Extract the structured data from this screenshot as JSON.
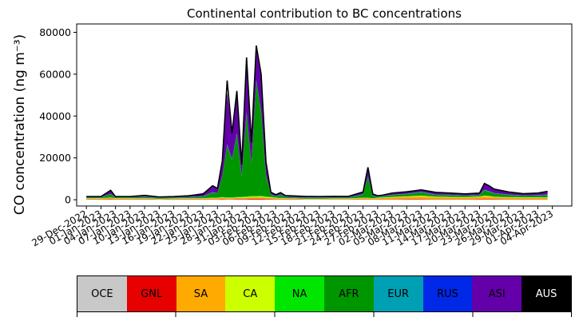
{
  "chart_data": {
    "type": "area",
    "title": "Continental contribution to BC concentrations",
    "ylabel": "CO concentration (ng m⁻³)",
    "xlabel": "",
    "ylim": [
      -3000,
      84000
    ],
    "yticks": [
      0,
      20000,
      40000,
      60000,
      80000
    ],
    "yticklabels": [
      "0",
      "20000",
      "40000",
      "60000",
      "80000"
    ],
    "xlim": [
      "2022-12-27",
      "2023-04-08"
    ],
    "xticks": [
      "2022-12-29",
      "2023-01-01",
      "2023-01-04",
      "2023-01-07",
      "2023-01-10",
      "2023-01-13",
      "2023-01-16",
      "2023-01-19",
      "2023-01-22",
      "2023-01-25",
      "2023-01-28",
      "2023-01-31",
      "2023-02-03",
      "2023-02-06",
      "2023-02-09",
      "2023-02-12",
      "2023-02-15",
      "2023-02-18",
      "2023-02-21",
      "2023-02-24",
      "2023-02-27",
      "2023-03-02",
      "2023-03-05",
      "2023-03-08",
      "2023-03-11",
      "2023-03-14",
      "2023-03-17",
      "2023-03-20",
      "2023-03-23",
      "2023-03-26",
      "2023-03-29",
      "2023-04-01",
      "2023-04-04"
    ],
    "xticklabels": [
      "29-Dec-2022",
      "01-Jan-2023",
      "04-Jan-2023",
      "07-Jan-2023",
      "10-Jan-2023",
      "13-Jan-2023",
      "16-Jan-2023",
      "19-Jan-2023",
      "22-Jan-2023",
      "25-Jan-2023",
      "28-Jan-2023",
      "31-Jan-2023",
      "03-Feb-2023",
      "06-Feb-2023",
      "09-Feb-2023",
      "12-Feb-2023",
      "15-Feb-2023",
      "18-Feb-2023",
      "21-Feb-2023",
      "24-Feb-2023",
      "27-Feb-2023",
      "02-Mar-2023",
      "05-Mar-2023",
      "08-Mar-2023",
      "11-Mar-2023",
      "14-Mar-2023",
      "17-Mar-2023",
      "20-Mar-2023",
      "23-Mar-2023",
      "26-Mar-2023",
      "29-Mar-2023",
      "01-Apr-2023",
      "04-Apr-2023"
    ],
    "x": [
      "2022-12-29",
      "2023-01-01",
      "2023-01-03",
      "2023-01-04",
      "2023-01-07",
      "2023-01-10",
      "2023-01-13",
      "2023-01-16",
      "2023-01-19",
      "2023-01-22",
      "2023-01-24",
      "2023-01-25",
      "2023-01-26",
      "2023-01-27",
      "2023-01-28",
      "2023-01-29",
      "2023-01-30",
      "2023-01-31",
      "2023-02-01",
      "2023-02-02",
      "2023-02-03",
      "2023-02-04",
      "2023-02-05",
      "2023-02-06",
      "2023-02-07",
      "2023-02-08",
      "2023-02-09",
      "2023-02-12",
      "2023-02-15",
      "2023-02-18",
      "2023-02-21",
      "2023-02-24",
      "2023-02-25",
      "2023-02-26",
      "2023-02-27",
      "2023-02-28",
      "2023-03-02",
      "2023-03-05",
      "2023-03-08",
      "2023-03-11",
      "2023-03-14",
      "2023-03-17",
      "2023-03-20",
      "2023-03-21",
      "2023-03-22",
      "2023-03-23",
      "2023-03-26",
      "2023-03-29",
      "2023-04-01",
      "2023-04-03"
    ],
    "series": [
      {
        "name": "OCE",
        "color": "#c8c8c8",
        "values": [
          100,
          100,
          100,
          100,
          100,
          100,
          100,
          100,
          100,
          100,
          100,
          100,
          100,
          100,
          100,
          100,
          100,
          100,
          100,
          100,
          100,
          100,
          100,
          100,
          100,
          100,
          100,
          100,
          100,
          100,
          100,
          100,
          100,
          100,
          100,
          100,
          100,
          100,
          100,
          100,
          100,
          100,
          100,
          100,
          100,
          100,
          100,
          100,
          100,
          100
        ]
      },
      {
        "name": "GNL",
        "color": "#e60000",
        "values": [
          200,
          200,
          300,
          200,
          200,
          200,
          100,
          200,
          200,
          200,
          200,
          200,
          300,
          200,
          200,
          300,
          300,
          300,
          400,
          400,
          400,
          300,
          300,
          200,
          200,
          200,
          200,
          100,
          100,
          100,
          100,
          200,
          200,
          100,
          200,
          200,
          200,
          300,
          300,
          200,
          200,
          200,
          300,
          300,
          300,
          300,
          200,
          200,
          200,
          200
        ]
      },
      {
        "name": "SA",
        "color": "#ffaa00",
        "values": [
          300,
          300,
          500,
          300,
          300,
          300,
          200,
          200,
          300,
          300,
          400,
          400,
          500,
          400,
          400,
          500,
          500,
          600,
          700,
          700,
          800,
          600,
          500,
          400,
          300,
          300,
          300,
          200,
          200,
          300,
          300,
          400,
          400,
          300,
          400,
          500,
          800,
          1000,
          1200,
          900,
          800,
          700,
          900,
          1200,
          1000,
          800,
          700,
          600,
          600,
          500
        ]
      },
      {
        "name": "CA",
        "color": "#ccff00",
        "values": [
          100,
          100,
          100,
          100,
          100,
          100,
          100,
          100,
          100,
          100,
          200,
          200,
          200,
          200,
          200,
          200,
          300,
          300,
          300,
          300,
          300,
          300,
          300,
          200,
          200,
          100,
          100,
          100,
          100,
          100,
          100,
          200,
          200,
          100,
          200,
          200,
          200,
          200,
          300,
          200,
          200,
          200,
          200,
          300,
          300,
          200,
          200,
          200,
          200,
          200
        ]
      },
      {
        "name": "NA",
        "color": "#00e600",
        "values": [
          100,
          100,
          100,
          100,
          100,
          100,
          100,
          100,
          100,
          100,
          100,
          100,
          200,
          200,
          200,
          200,
          200,
          300,
          300,
          300,
          300,
          300,
          200,
          200,
          100,
          100,
          100,
          100,
          100,
          100,
          100,
          100,
          100,
          100,
          100,
          100,
          100,
          100,
          100,
          100,
          100,
          100,
          100,
          100,
          100,
          100,
          100,
          100,
          100,
          100
        ]
      },
      {
        "name": "AFR",
        "color": "#009600",
        "values": [
          200,
          300,
          1500,
          300,
          300,
          500,
          300,
          300,
          400,
          700,
          2500,
          2000,
          10000,
          25000,
          18000,
          30000,
          10000,
          40000,
          15000,
          55000,
          40000,
          10000,
          1000,
          500,
          1500,
          500,
          400,
          300,
          300,
          300,
          300,
          1500,
          10000,
          1000,
          400,
          500,
          800,
          1000,
          1500,
          800,
          800,
          600,
          600,
          2500,
          2000,
          1500,
          1000,
          700,
          800,
          1200
        ]
      },
      {
        "name": "EUR",
        "color": "#00a0b4",
        "values": [
          100,
          100,
          100,
          100,
          100,
          100,
          100,
          100,
          100,
          100,
          100,
          100,
          100,
          200,
          200,
          200,
          200,
          200,
          200,
          200,
          200,
          200,
          100,
          100,
          100,
          100,
          100,
          100,
          100,
          100,
          100,
          100,
          100,
          100,
          100,
          100,
          100,
          100,
          200,
          100,
          100,
          100,
          100,
          200,
          200,
          100,
          100,
          100,
          100,
          100
        ]
      },
      {
        "name": "RUS",
        "color": "#0028e6",
        "values": [
          100,
          100,
          100,
          100,
          100,
          100,
          100,
          100,
          100,
          100,
          100,
          100,
          100,
          200,
          200,
          200,
          200,
          200,
          200,
          200,
          200,
          200,
          100,
          100,
          100,
          100,
          100,
          100,
          100,
          100,
          100,
          100,
          100,
          100,
          100,
          100,
          100,
          100,
          100,
          100,
          100,
          100,
          100,
          100,
          100,
          100,
          100,
          100,
          100,
          100
        ]
      },
      {
        "name": "ASI",
        "color": "#6400aa",
        "values": [
          300,
          300,
          2000,
          400,
          400,
          600,
          400,
          500,
          700,
          1500,
          3000,
          2000,
          7000,
          25000,
          12000,
          20000,
          5000,
          25000,
          10000,
          16000,
          18000,
          6000,
          1000,
          600,
          1000,
          600,
          500,
          500,
          400,
          400,
          400,
          1000,
          4000,
          800,
          500,
          600,
          800,
          1000,
          1200,
          1000,
          900,
          800,
          900,
          3000,
          2500,
          2000,
          1200,
          800,
          900,
          1500
        ]
      },
      {
        "name": "AUS",
        "color": "#000000",
        "values": [
          0,
          0,
          0,
          0,
          0,
          0,
          0,
          0,
          0,
          0,
          0,
          0,
          0,
          0,
          0,
          0,
          0,
          0,
          0,
          0,
          0,
          0,
          0,
          0,
          0,
          0,
          0,
          0,
          0,
          0,
          0,
          0,
          0,
          0,
          0,
          0,
          0,
          0,
          0,
          0,
          0,
          0,
          0,
          0,
          0,
          0,
          0,
          0,
          0,
          0
        ]
      }
    ],
    "total": [
      1500,
      1500,
      4500,
      1500,
      1500,
      2100,
      1300,
      1500,
      1900,
      2600,
      6700,
      5400,
      18500,
      57000,
      31700,
      52000,
      16800,
      68000,
      27400,
      73700,
      60000,
      18100,
      3600,
      2400,
      3400,
      2000,
      1900,
      1600,
      1500,
      1600,
      1600,
      3700,
      15500,
      2700,
      1900,
      2200,
      3200,
      3800,
      4700,
      3500,
      3200,
      2800,
      3200,
      7800,
      6600,
      5100,
      3700,
      2900,
      3200,
      4000
    ]
  },
  "legend": {
    "items": [
      {
        "label": "OCE",
        "color": "#c8c8c8",
        "text_color": "#000000"
      },
      {
        "label": "GNL",
        "color": "#e60000",
        "text_color": "#000000"
      },
      {
        "label": "SA",
        "color": "#ffaa00",
        "text_color": "#000000"
      },
      {
        "label": "CA",
        "color": "#ccff00",
        "text_color": "#000000"
      },
      {
        "label": "NA",
        "color": "#00e600",
        "text_color": "#000000"
      },
      {
        "label": "AFR",
        "color": "#009600",
        "text_color": "#000000"
      },
      {
        "label": "EUR",
        "color": "#00a0b4",
        "text_color": "#000000"
      },
      {
        "label": "RUS",
        "color": "#0028e6",
        "text_color": "#000000"
      },
      {
        "label": "ASI",
        "color": "#6400aa",
        "text_color": "#000000"
      },
      {
        "label": "AUS",
        "color": "#000000",
        "text_color": "#ffffff"
      }
    ]
  }
}
